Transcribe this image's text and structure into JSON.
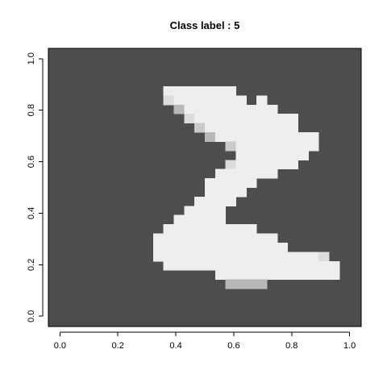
{
  "chart_data": {
    "type": "heatmap",
    "title": "Class label : 5",
    "xlabel": "",
    "ylabel": "",
    "xlim": [
      0,
      1
    ],
    "ylim": [
      0,
      1
    ],
    "grid": false,
    "x_ticks": [
      "0.0",
      "0.2",
      "0.4",
      "0.6",
      "0.8",
      "1.0"
    ],
    "y_ticks": [
      "0.0",
      "0.2",
      "0.4",
      "0.6",
      "0.8",
      "1.0"
    ],
    "colormap": "grayscale, 0 = #4d4d4d, 1 = #eeeeee",
    "grid_size": [
      28,
      28
    ],
    "pixels": [
      "............................",
      "............................",
      "............................",
      "..........9999999...........",
      "..........89999999.9........",
      "...........6999999999.......",
      "............89999999999.....",
      ".............7999999999.....",
      "..............69999999999...",
      "................799999999...",
      ".................9999999....",
      "................8999999.....",
      "...............999999.......",
      "..............99999.........",
      "..............9999..........",
      ".............9999...........",
      "............9999............",
      "...........99999............",
      "..........999999999.........",
      ".........999999999999.......",
      ".........9999999999999......",
      ".........99999999999999998..",
      "..........99999999999999999.",
      "...............999999999999.",
      "................6666........",
      "............................",
      "............................",
      "............................"
    ]
  }
}
